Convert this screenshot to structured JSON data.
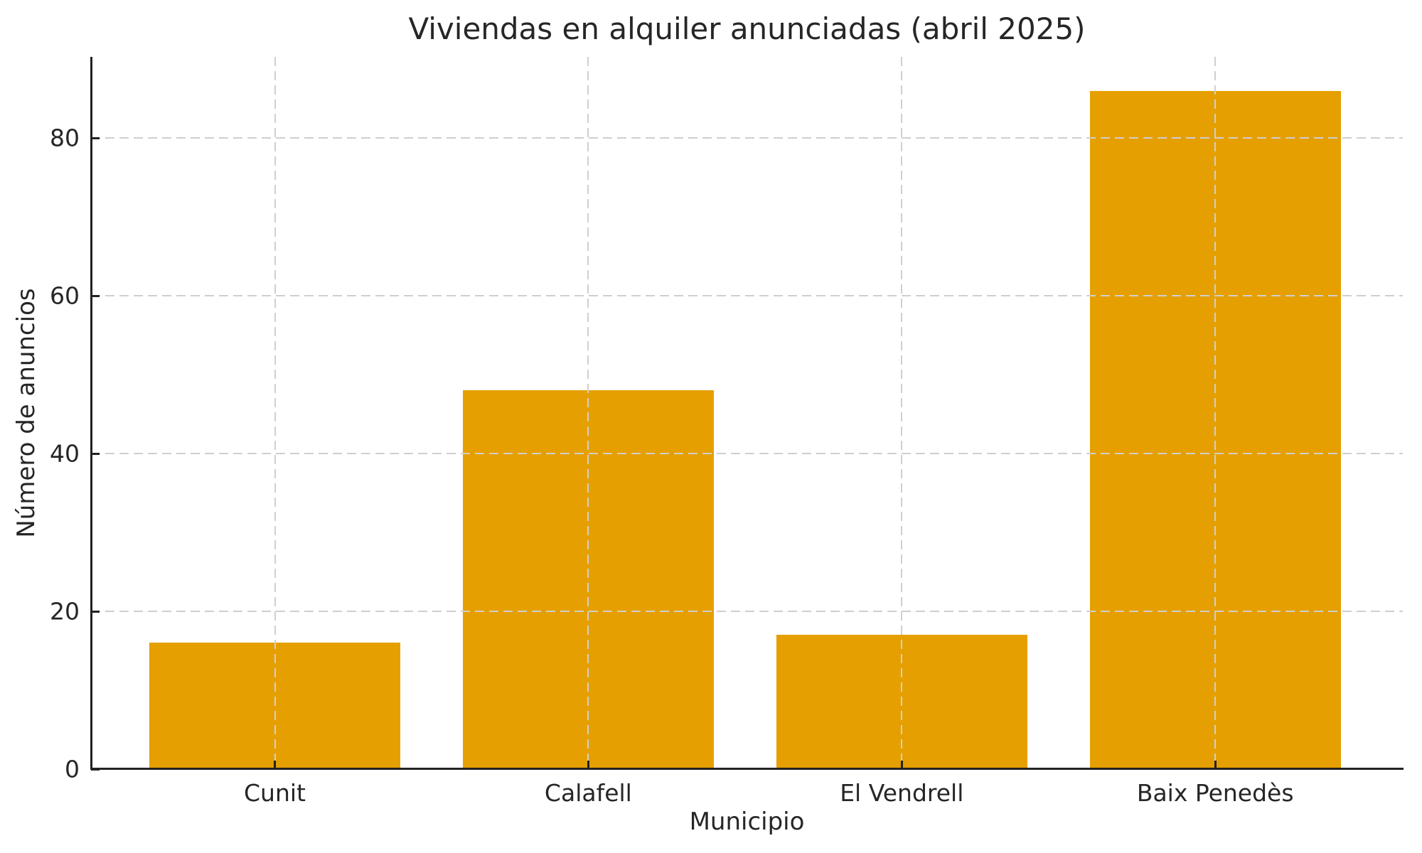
{
  "chart_data": {
    "type": "bar",
    "title": "Viviendas en alquiler anunciadas (abril 2025)",
    "xlabel": "Municipio",
    "ylabel": "Número de anuncios",
    "categories": [
      "Cunit",
      "Calafell",
      "El Vendrell",
      "Baix Penedès"
    ],
    "values": [
      16,
      48,
      17,
      86
    ],
    "yticks": [
      0,
      20,
      40,
      60,
      80
    ],
    "ylim": [
      0,
      90.3
    ],
    "bar_color": "#E69F00",
    "grid": true,
    "grid_line_style": "dashed",
    "grid_color": "#cfcfcf",
    "axis_color": "#222222",
    "text_color": "#262626",
    "background_color": "#ffffff",
    "legend_position": "none"
  }
}
